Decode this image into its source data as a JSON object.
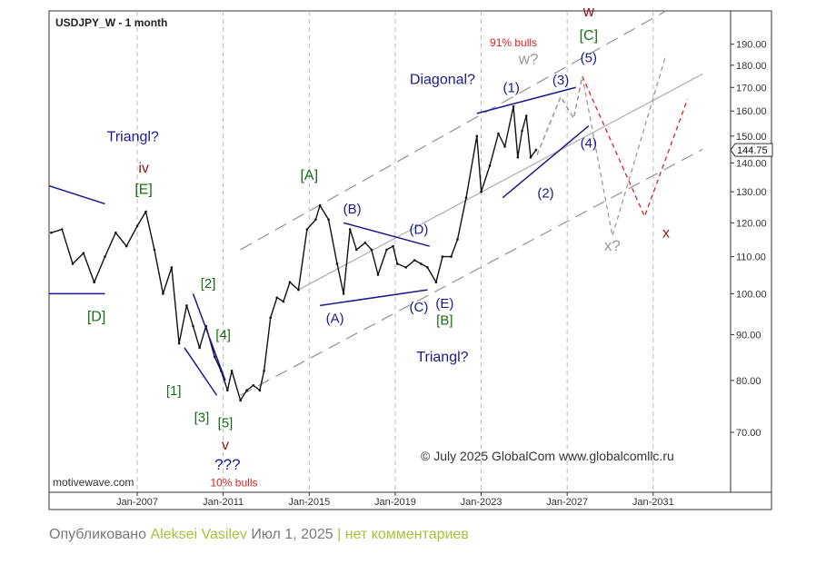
{
  "chart_data": {
    "type": "line",
    "title": "USDJPY_W - 1 month",
    "credit": "© July 2025 GlobalCom www.globalcomllc.ru",
    "watermark": "motivewave.com",
    "x_ticks": [
      "Jan-2007",
      "Jan-2011",
      "Jan-2015",
      "Jan-2019",
      "Jan-2023",
      "Jan-2027",
      "Jan-2031"
    ],
    "y_ticks": [
      "190.00",
      "180.00",
      "170.00",
      "160.00",
      "150.00",
      "140.00",
      "130.00",
      "120.00",
      "110.00",
      "100.00",
      "90.00",
      "80.00",
      "70.00"
    ],
    "y_scale": "log",
    "ylim": [
      60,
      207
    ],
    "xlim": [
      2002.9,
      2034.6
    ],
    "last_price": "144.75",
    "price_series": [
      [
        2003.0,
        117
      ],
      [
        2003.5,
        118
      ],
      [
        2004.0,
        108
      ],
      [
        2004.5,
        111
      ],
      [
        2005.0,
        103
      ],
      [
        2005.5,
        110
      ],
      [
        2006.0,
        117
      ],
      [
        2006.5,
        113
      ],
      [
        2007.0,
        119
      ],
      [
        2007.4,
        123.5
      ],
      [
        2007.8,
        112
      ],
      [
        2008.2,
        100
      ],
      [
        2008.6,
        107
      ],
      [
        2008.95,
        88
      ],
      [
        2009.3,
        97
      ],
      [
        2009.6,
        92
      ],
      [
        2009.9,
        87
      ],
      [
        2010.2,
        92
      ],
      [
        2010.6,
        85
      ],
      [
        2010.9,
        82
      ],
      [
        2011.2,
        78
      ],
      [
        2011.4,
        82
      ],
      [
        2011.8,
        76
      ],
      [
        2012.1,
        78
      ],
      [
        2012.4,
        79
      ],
      [
        2012.7,
        78
      ],
      [
        2012.9,
        82
      ],
      [
        2013.2,
        94
      ],
      [
        2013.5,
        99
      ],
      [
        2013.8,
        98
      ],
      [
        2014.1,
        103
      ],
      [
        2014.5,
        101
      ],
      [
        2014.9,
        118
      ],
      [
        2015.3,
        121
      ],
      [
        2015.5,
        125.5
      ],
      [
        2015.9,
        121
      ],
      [
        2016.3,
        108
      ],
      [
        2016.6,
        100
      ],
      [
        2016.9,
        118
      ],
      [
        2017.2,
        112
      ],
      [
        2017.6,
        114
      ],
      [
        2017.9,
        112
      ],
      [
        2018.2,
        105
      ],
      [
        2018.6,
        112
      ],
      [
        2018.9,
        113
      ],
      [
        2019.1,
        108
      ],
      [
        2019.5,
        107
      ],
      [
        2019.9,
        109
      ],
      [
        2020.2,
        108
      ],
      [
        2020.5,
        107
      ],
      [
        2020.9,
        103
      ],
      [
        2021.2,
        110
      ],
      [
        2021.6,
        110
      ],
      [
        2021.9,
        115
      ],
      [
        2022.3,
        128
      ],
      [
        2022.8,
        150
      ],
      [
        2023.0,
        130
      ],
      [
        2023.4,
        139
      ],
      [
        2023.8,
        151
      ],
      [
        2024.1,
        146
      ],
      [
        2024.5,
        161.9
      ],
      [
        2024.7,
        142
      ],
      [
        2024.9,
        152
      ],
      [
        2025.1,
        158
      ],
      [
        2025.3,
        142
      ],
      [
        2025.55,
        144.75
      ]
    ],
    "trend_lines": [
      {
        "points": [
          [
            2002.9,
            132
          ],
          [
            2005.5,
            126
          ]
        ],
        "color": "#1a1a8c"
      },
      {
        "points": [
          [
            2002.9,
            100
          ],
          [
            2005.5,
            100
          ]
        ],
        "color": "#1a1a8c"
      },
      {
        "points": [
          [
            2009.6,
            100
          ],
          [
            2011.1,
            80
          ]
        ],
        "color": "#1a1a8c"
      },
      {
        "points": [
          [
            2009.2,
            87
          ],
          [
            2010.7,
            77
          ]
        ],
        "color": "#1a1a8c"
      },
      {
        "points": [
          [
            2015.5,
            97
          ],
          [
            2020.5,
            101
          ]
        ],
        "color": "#1a1a8c"
      },
      {
        "points": [
          [
            2016.6,
            120
          ],
          [
            2020.6,
            113
          ]
        ],
        "color": "#1a1a8c"
      },
      {
        "points": [
          [
            2022.8,
            159
          ],
          [
            2027.4,
            170
          ]
        ],
        "color": "#1a1a8c"
      },
      {
        "points": [
          [
            2024.0,
            128
          ],
          [
            2028.0,
            154
          ]
        ],
        "color": "#1a1a8c"
      }
    ],
    "channel_lines": [
      {
        "points": [
          [
            2011.8,
            112
          ],
          [
            2031.6,
            207
          ]
        ],
        "style": "dashed",
        "color": "#999999"
      },
      {
        "points": [
          [
            2011.8,
            77
          ],
          [
            2033.3,
            145
          ]
        ],
        "style": "dashed",
        "color": "#999999"
      },
      {
        "points": [
          [
            2014.5,
            101
          ],
          [
            2033.3,
            176
          ]
        ],
        "style": "solid",
        "color": "#b3b3b3"
      }
    ],
    "forecast_paths": [
      {
        "points": [
          [
            2025.6,
            143
          ],
          [
            2026.7,
            166
          ],
          [
            2027.3,
            157
          ],
          [
            2027.7,
            175
          ],
          [
            2030.6,
            122
          ],
          [
            2032.6,
            165
          ]
        ],
        "style": "dashed",
        "color": "#dd2222"
      },
      {
        "points": [
          [
            2025.6,
            143
          ],
          [
            2026.7,
            166
          ],
          [
            2027.3,
            157
          ],
          [
            2027.7,
            175
          ],
          [
            2029.1,
            116
          ],
          [
            2031.6,
            185
          ]
        ],
        "style": "dashed",
        "color": "#999999"
      }
    ],
    "annotations": [
      {
        "text": "Triangl?",
        "x": 2006.8,
        "y": 148.0,
        "color": "#1a1a8c",
        "size": 16
      },
      {
        "text": "iv",
        "x": 2007.3,
        "y": 136.5,
        "color": "#8b1a1a",
        "size": 16
      },
      {
        "text": "[E]",
        "x": 2007.3,
        "y": 129.3,
        "color": "#1a6b1a",
        "size": 16
      },
      {
        "text": "[D]",
        "x": 2005.1,
        "y": 93.2,
        "color": "#1a6b1a",
        "size": 16
      },
      {
        "text": "[2]",
        "x": 2010.3,
        "y": 101.5,
        "color": "#1a6b1a",
        "size": 15
      },
      {
        "text": "[4]",
        "x": 2011.0,
        "y": 89.0,
        "color": "#1a6b1a",
        "size": 15
      },
      {
        "text": "[1]",
        "x": 2008.7,
        "y": 77.0,
        "color": "#1a6b1a",
        "size": 15
      },
      {
        "text": "[3]",
        "x": 2010.0,
        "y": 71.9,
        "color": "#1a6b1a",
        "size": 15
      },
      {
        "text": "[5]",
        "x": 2011.1,
        "y": 70.9,
        "color": "#1a6b1a",
        "size": 15
      },
      {
        "text": "v",
        "x": 2011.1,
        "y": 67.0,
        "color": "#8b1a1a",
        "size": 16
      },
      {
        "text": "???",
        "x": 2011.2,
        "y": 63.6,
        "color": "#1a1a8c",
        "size": 17
      },
      {
        "text": "10% bulls",
        "x": 2011.5,
        "y": 60.9,
        "color": "#dd2222",
        "size": 12
      },
      {
        "text": "[A]",
        "x": 2015.0,
        "y": 134.0,
        "color": "#1a6b1a",
        "size": 16
      },
      {
        "text": "(B)",
        "x": 2017.0,
        "y": 123.0,
        "color": "#1a1a8c",
        "size": 15
      },
      {
        "text": "(D)",
        "x": 2020.1,
        "y": 116.7,
        "color": "#1a1a8c",
        "size": 15
      },
      {
        "text": "(A)",
        "x": 2016.2,
        "y": 92.8,
        "color": "#1a1a8c",
        "size": 15
      },
      {
        "text": "(C)",
        "x": 2020.1,
        "y": 95.5,
        "color": "#1a1a8c",
        "size": 15
      },
      {
        "text": "(E)",
        "x": 2021.3,
        "y": 96.4,
        "color": "#1a1a8c",
        "size": 15
      },
      {
        "text": "[B]",
        "x": 2021.3,
        "y": 92.3,
        "color": "#1a6b1a",
        "size": 15
      },
      {
        "text": "Triangl?",
        "x": 2021.2,
        "y": 84.0,
        "color": "#1a1a8c",
        "size": 16
      },
      {
        "text": "Diagonal?",
        "x": 2021.2,
        "y": 171.5,
        "color": "#1a1a8c",
        "size": 16
      },
      {
        "text": "(1)",
        "x": 2024.4,
        "y": 168.0,
        "color": "#1a1a8c",
        "size": 15
      },
      {
        "text": "(2)",
        "x": 2026.0,
        "y": 128.0,
        "color": "#1a1a8c",
        "size": 15
      },
      {
        "text": "(3)",
        "x": 2026.7,
        "y": 171.4,
        "color": "#1a1a8c",
        "size": 15
      },
      {
        "text": "(4)",
        "x": 2028.0,
        "y": 145.6,
        "color": "#1a1a8c",
        "size": 15
      },
      {
        "text": "(5)",
        "x": 2028.0,
        "y": 181.4,
        "color": "#1a1a8c",
        "size": 15
      },
      {
        "text": "[C]",
        "x": 2028.0,
        "y": 192.0,
        "color": "#1a6b1a",
        "size": 16
      },
      {
        "text": "w",
        "x": 2028.0,
        "y": 204.0,
        "color": "#8b1a1a",
        "size": 17
      },
      {
        "text": "91% bulls",
        "x": 2024.5,
        "y": 189.0,
        "color": "#dd2222",
        "size": 12
      },
      {
        "text": "w?",
        "x": 2025.2,
        "y": 180.6,
        "color": "#999999",
        "size": 17
      },
      {
        "text": "x?",
        "x": 2029.1,
        "y": 111.7,
        "color": "#999999",
        "size": 17
      },
      {
        "text": "x",
        "x": 2031.6,
        "y": 115.5,
        "color": "#8b1a1a",
        "size": 16
      }
    ]
  },
  "footer": {
    "prefix": "Опубликовано",
    "author": "Aleksei Vasilev",
    "date": "Июл 1, 2025",
    "separator": "|",
    "comments": "нет комментариев"
  }
}
